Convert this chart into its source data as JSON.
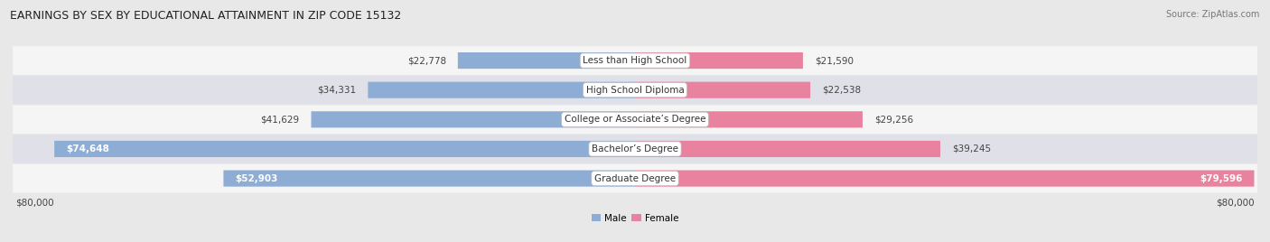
{
  "title": "EARNINGS BY SEX BY EDUCATIONAL ATTAINMENT IN ZIP CODE 15132",
  "source": "Source: ZipAtlas.com",
  "categories": [
    "Less than High School",
    "High School Diploma",
    "College or Associate’s Degree",
    "Bachelor’s Degree",
    "Graduate Degree"
  ],
  "male_values": [
    22778,
    34331,
    41629,
    74648,
    52903
  ],
  "female_values": [
    21590,
    22538,
    29256,
    39245,
    79596
  ],
  "male_color": "#8eadd4",
  "female_color": "#e8829e",
  "max_value": 80000,
  "bg_color": "#e8e8e8",
  "row_bg_even": "#f5f5f5",
  "row_bg_odd": "#e0e0e8",
  "title_fontsize": 9,
  "source_fontsize": 7,
  "bar_label_fontsize": 7.5,
  "cat_label_fontsize": 7.5,
  "axis_label_fontsize": 7.5
}
